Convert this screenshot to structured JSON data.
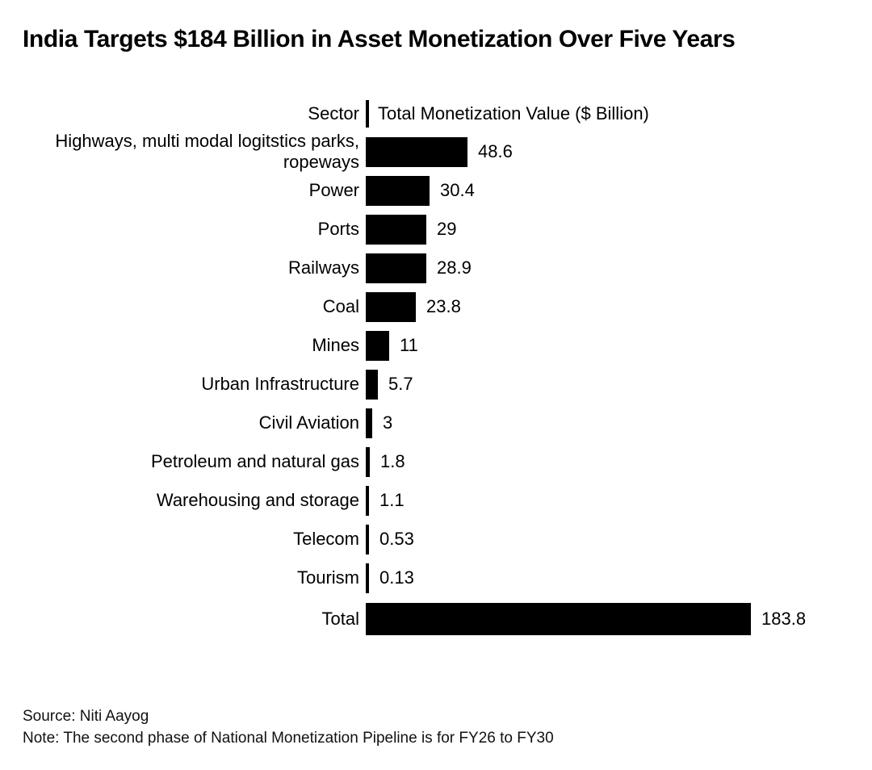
{
  "title": "India Targets $184 Billion in Asset Monetization Over Five Years",
  "chart_data": {
    "type": "bar",
    "orientation": "horizontal",
    "title": "India Targets $184 Billion in Asset Monetization Over Five Years",
    "column_headers": {
      "left": "Sector",
      "right": "Total Monetization Value ($ Billion)"
    },
    "categories": [
      "Highways, multi modal logitstics parks,\nropeways",
      "Power",
      "Ports",
      "Railways",
      "Coal",
      "Mines",
      "Urban Infrastructure",
      "Civil Aviation",
      "Petroleum and natural gas",
      "Warehousing and storage",
      "Telecom",
      "Tourism",
      "Total"
    ],
    "values": [
      48.6,
      30.4,
      29,
      28.9,
      23.8,
      11,
      5.7,
      3,
      1.8,
      1.1,
      0.53,
      0.13,
      183.8
    ],
    "value_labels": [
      "48.6",
      "30.4",
      "29",
      "28.9",
      "23.8",
      "11",
      "5.7",
      "3",
      "1.8",
      "1.1",
      "0.53",
      "0.13",
      "183.8"
    ],
    "total_row_label": "Total",
    "xlim": [
      0,
      183.8
    ],
    "bar_color": "#000000",
    "grid": "off",
    "legend": "none"
  },
  "footer": {
    "source": "Source: Niti Aayog",
    "note": "Note: The second phase of National Monetization Pipeline is for FY26 to FY30"
  }
}
